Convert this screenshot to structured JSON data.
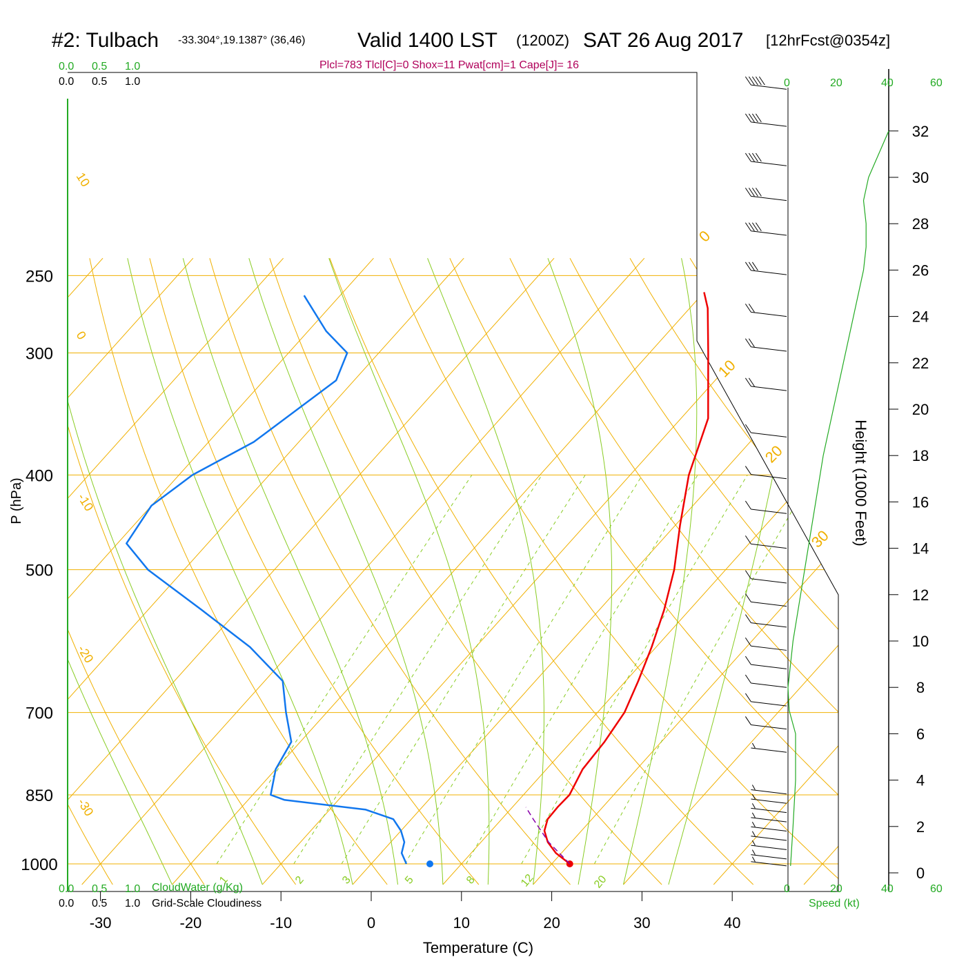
{
  "header": {
    "station": "#2: Tulbach",
    "coords": "-33.304°,19.1387° (36,46)",
    "valid": "Valid 1400 LST",
    "zulu": "(1200Z)",
    "date": "SAT 26 Aug 2017",
    "fcst": "[12hrFcst@0354z]"
  },
  "params_line": "Plcl=783 Tlcl[C]=0 Shox=11 Pwat[cm]=1 Cape[J]= 16",
  "cloud_scales": {
    "water_top": [
      "0.0",
      "0.5",
      "1.0"
    ],
    "cover_top": [
      "0.0",
      "0.5",
      "1.0"
    ],
    "water_bottom": [
      "0.0",
      "0.5",
      "1.0"
    ],
    "cover_bottom": [
      "0.0",
      "0.5",
      "1.0"
    ],
    "water_label": "CloudWater (g/Kg)",
    "cover_label": "Grid-Scale Cloudiness"
  },
  "speed_axis": {
    "ticks": [
      "0",
      "20",
      "40",
      "60"
    ],
    "label": "Speed (kt)"
  },
  "colors": {
    "isotherm": "#f0b000",
    "moist_adiabat": "#88cc22",
    "temperature": "#ee0000",
    "dewpoint": "#1177ee",
    "speed": "#22aa22",
    "params": "#b0005a"
  },
  "chart_data": {
    "type": "line",
    "subtype": "skew-T log-P sounding",
    "xlabel": "Temperature (C)",
    "ylabel": "P (hPa)",
    "y2label": "Height (1000 Feet)",
    "x_ticks": [
      -30,
      -20,
      -10,
      0,
      10,
      20,
      30,
      40
    ],
    "p_ticks": [
      250,
      300,
      400,
      500,
      700,
      850,
      1000
    ],
    "height_ticks": [
      0,
      2,
      4,
      6,
      8,
      10,
      12,
      14,
      16,
      18,
      20,
      22,
      24,
      26,
      28,
      30,
      32
    ],
    "isotherm_labels": [
      "10",
      "0",
      "-10",
      "-20",
      "-30"
    ],
    "isotherm_labels_right": [
      "0",
      "10",
      "20",
      "30"
    ],
    "mixing_ratio_labels": [
      "1",
      "2",
      "3",
      "5",
      "8",
      "12",
      "20"
    ],
    "temperature": [
      {
        "p": 1000,
        "t": 22.0
      },
      {
        "p": 975,
        "t": 19.4
      },
      {
        "p": 950,
        "t": 17.4
      },
      {
        "p": 925,
        "t": 15.9
      },
      {
        "p": 900,
        "t": 15.1
      },
      {
        "p": 875,
        "t": 15.0
      },
      {
        "p": 850,
        "t": 15.1
      },
      {
        "p": 800,
        "t": 14.0
      },
      {
        "p": 750,
        "t": 13.7
      },
      {
        "p": 700,
        "t": 13.0
      },
      {
        "p": 650,
        "t": 11.4
      },
      {
        "p": 600,
        "t": 9.5
      },
      {
        "p": 550,
        "t": 7.2
      },
      {
        "p": 500,
        "t": 4.3
      },
      {
        "p": 450,
        "t": 0.5
      },
      {
        "p": 400,
        "t": -3.5
      },
      {
        "p": 350,
        "t": -7.0
      },
      {
        "p": 300,
        "t": -13.5
      },
      {
        "p": 270,
        "t": -18.0
      },
      {
        "p": 260,
        "t": -20.0
      }
    ],
    "dewpoint": [
      {
        "p": 1000,
        "t": 3.9
      },
      {
        "p": 975,
        "t": 2.3
      },
      {
        "p": 950,
        "t": 1.5
      },
      {
        "p": 925,
        "t": 0.0
      },
      {
        "p": 900,
        "t": -2.0
      },
      {
        "p": 880,
        "t": -6.0
      },
      {
        "p": 860,
        "t": -16.0
      },
      {
        "p": 850,
        "t": -18.0
      },
      {
        "p": 800,
        "t": -20.0
      },
      {
        "p": 750,
        "t": -21.0
      },
      {
        "p": 700,
        "t": -24.5
      },
      {
        "p": 650,
        "t": -28.0
      },
      {
        "p": 600,
        "t": -35.0
      },
      {
        "p": 550,
        "t": -44.0
      },
      {
        "p": 500,
        "t": -54.0
      },
      {
        "p": 470,
        "t": -59.0
      },
      {
        "p": 430,
        "t": -60.0
      },
      {
        "p": 400,
        "t": -58.5
      },
      {
        "p": 370,
        "t": -55.0
      },
      {
        "p": 320,
        "t": -52.0
      },
      {
        "p": 300,
        "t": -53.5
      },
      {
        "p": 285,
        "t": -58.0
      },
      {
        "p": 262,
        "t": -64.0
      }
    ],
    "parcel": [
      {
        "p": 1000,
        "t": 22.0
      },
      {
        "p": 950,
        "t": 17.5
      },
      {
        "p": 900,
        "t": 13.5
      },
      {
        "p": 875,
        "t": 11.5
      }
    ],
    "surface_temp": 22.0,
    "surface_dewpoint": 6.5,
    "wind_speed_profile": [
      {
        "h": 0.3,
        "kt": 1
      },
      {
        "h": 2,
        "kt": 2
      },
      {
        "h": 4,
        "kt": 3
      },
      {
        "h": 5,
        "kt": 3
      },
      {
        "h": 6,
        "kt": 3
      },
      {
        "h": 7,
        "kt": 0.5
      },
      {
        "h": 8,
        "kt": 0
      },
      {
        "h": 9,
        "kt": 1
      },
      {
        "h": 10,
        "kt": 2
      },
      {
        "h": 12,
        "kt": 5
      },
      {
        "h": 14,
        "kt": 8
      },
      {
        "h": 16,
        "kt": 11
      },
      {
        "h": 18,
        "kt": 14
      },
      {
        "h": 20,
        "kt": 18
      },
      {
        "h": 22,
        "kt": 22
      },
      {
        "h": 24,
        "kt": 26
      },
      {
        "h": 26,
        "kt": 30
      },
      {
        "h": 27,
        "kt": 31
      },
      {
        "h": 28,
        "kt": 31
      },
      {
        "h": 29,
        "kt": 30
      },
      {
        "h": 30,
        "kt": 32
      },
      {
        "h": 32,
        "kt": 40
      }
    ],
    "barbs": [
      {
        "h": 0.3,
        "kt": 5
      },
      {
        "h": 0.6,
        "kt": 5
      },
      {
        "h": 1.0,
        "kt": 5
      },
      {
        "h": 1.4,
        "kt": 5
      },
      {
        "h": 1.8,
        "kt": 5
      },
      {
        "h": 2.2,
        "kt": 5
      },
      {
        "h": 2.6,
        "kt": 5
      },
      {
        "h": 3.0,
        "kt": 5
      },
      {
        "h": 3.4,
        "kt": 5
      },
      {
        "h": 5.2,
        "kt": 5
      },
      {
        "h": 6.2,
        "kt": 10
      },
      {
        "h": 7.2,
        "kt": 10
      },
      {
        "h": 8.0,
        "kt": 10
      },
      {
        "h": 8.8,
        "kt": 10
      },
      {
        "h": 9.6,
        "kt": 10
      },
      {
        "h": 10.6,
        "kt": 10
      },
      {
        "h": 11.5,
        "kt": 10
      },
      {
        "h": 12.5,
        "kt": 10
      },
      {
        "h": 14.0,
        "kt": 10
      },
      {
        "h": 15.5,
        "kt": 10
      },
      {
        "h": 17.0,
        "kt": 10
      },
      {
        "h": 18.8,
        "kt": 10
      },
      {
        "h": 20.8,
        "kt": 20
      },
      {
        "h": 22.5,
        "kt": 20
      },
      {
        "h": 24.0,
        "kt": 20
      },
      {
        "h": 25.8,
        "kt": 30
      },
      {
        "h": 27.5,
        "kt": 40
      },
      {
        "h": 29.0,
        "kt": 40
      },
      {
        "h": 30.5,
        "kt": 40
      },
      {
        "h": 32.2,
        "kt": 40
      },
      {
        "h": 33.8,
        "kt": 50
      }
    ]
  }
}
